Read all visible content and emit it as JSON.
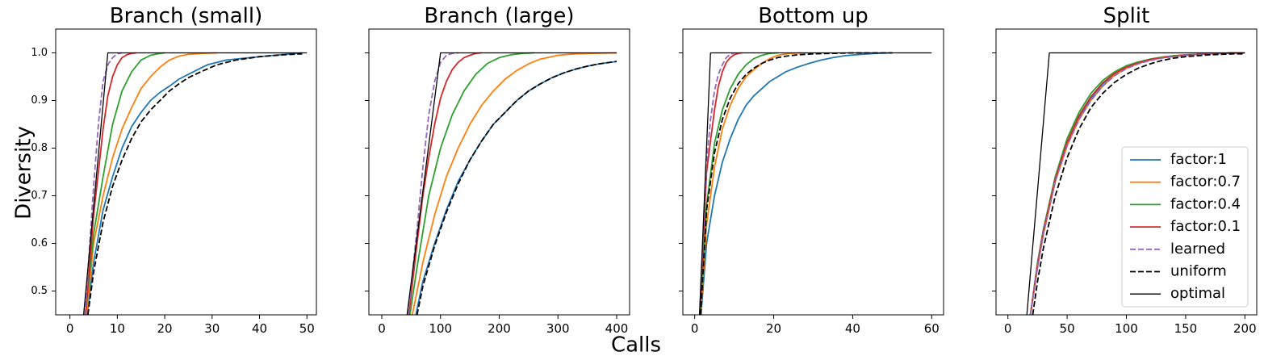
{
  "figure": {
    "ylabel": "Diversity",
    "xlabel": "Calls",
    "colors": {
      "factor:1": "#1f77b4",
      "factor:0.7": "#ff7f0e",
      "factor:0.4": "#2ca02c",
      "factor:0.1": "#d62728",
      "learned": "#9467bd",
      "uniform": "#000000",
      "optimal": "#000000"
    },
    "legend": {
      "placement": "lower-right of last panel",
      "entries": [
        {
          "label": "factor:1",
          "color": "#1f77b4",
          "style": "solid"
        },
        {
          "label": "factor:0.7",
          "color": "#ff7f0e",
          "style": "solid"
        },
        {
          "label": "factor:0.4",
          "color": "#2ca02c",
          "style": "solid"
        },
        {
          "label": "factor:0.1",
          "color": "#d62728",
          "style": "solid"
        },
        {
          "label": "learned",
          "color": "#9467bd",
          "style": "dashed"
        },
        {
          "label": "uniform",
          "color": "#000000",
          "style": "dashed"
        },
        {
          "label": "optimal",
          "color": "#000000",
          "style": "thin"
        }
      ]
    }
  },
  "chart_data": [
    {
      "type": "line",
      "title": "Branch (small)",
      "xlim": [
        -3,
        52
      ],
      "ylim": [
        0.45,
        1.05
      ],
      "xticks": [
        0,
        10,
        20,
        30,
        40,
        50
      ],
      "yticks": [
        0.5,
        0.6,
        0.7,
        0.8,
        0.9,
        1.0
      ],
      "series": [
        {
          "name": "factor:1",
          "x": [
            3.6,
            5,
            7,
            9,
            11,
            13,
            15,
            17,
            19,
            21,
            23,
            26,
            29,
            33,
            38,
            43,
            49
          ],
          "y": [
            0.45,
            0.56,
            0.67,
            0.74,
            0.8,
            0.845,
            0.875,
            0.9,
            0.917,
            0.93,
            0.945,
            0.96,
            0.975,
            0.985,
            0.99,
            0.995,
            1.0
          ]
        },
        {
          "name": "factor:0.7",
          "x": [
            3.5,
            5,
            7,
            9,
            11,
            13,
            15,
            17,
            19,
            21,
            23,
            25,
            28,
            31
          ],
          "y": [
            0.45,
            0.6,
            0.7,
            0.78,
            0.84,
            0.885,
            0.925,
            0.95,
            0.97,
            0.985,
            0.993,
            0.997,
            0.999,
            1.0
          ]
        },
        {
          "name": "factor:0.4",
          "x": [
            3.3,
            5,
            7,
            9,
            11,
            13,
            15,
            17,
            19,
            20
          ],
          "y": [
            0.45,
            0.62,
            0.74,
            0.85,
            0.92,
            0.96,
            0.985,
            0.995,
            0.999,
            1.0
          ]
        },
        {
          "name": "factor:0.1",
          "x": [
            3.3,
            5,
            6,
            7,
            8,
            9,
            10,
            11,
            12,
            13,
            14
          ],
          "y": [
            0.45,
            0.66,
            0.75,
            0.84,
            0.91,
            0.95,
            0.975,
            0.99,
            0.996,
            0.999,
            1.0
          ]
        },
        {
          "name": "learned",
          "x": [
            3.2,
            5,
            6,
            7,
            8,
            9,
            10,
            11
          ],
          "y": [
            0.45,
            0.72,
            0.85,
            0.94,
            0.975,
            0.99,
            0.998,
            1.0
          ]
        },
        {
          "name": "uniform",
          "x": [
            3.8,
            5,
            7,
            9,
            11,
            13,
            15,
            17,
            19,
            21,
            23,
            25,
            28,
            31,
            35,
            40,
            45,
            49
          ],
          "y": [
            0.45,
            0.54,
            0.645,
            0.72,
            0.775,
            0.82,
            0.855,
            0.88,
            0.9,
            0.92,
            0.935,
            0.948,
            0.962,
            0.975,
            0.985,
            0.992,
            0.996,
            0.998
          ]
        },
        {
          "name": "optimal",
          "x": [
            2.9,
            8,
            50
          ],
          "y": [
            0.45,
            1.0,
            1.0
          ]
        }
      ]
    },
    {
      "type": "line",
      "title": "Branch (large)",
      "xlim": [
        -22,
        422
      ],
      "ylim": [
        0.45,
        1.05
      ],
      "xticks": [
        0,
        100,
        200,
        300,
        400
      ],
      "yticks": [
        0.5,
        0.6,
        0.7,
        0.8,
        0.9,
        1.0
      ],
      "series": [
        {
          "name": "factor:1",
          "x": [
            58,
            70,
            90,
            110,
            130,
            150,
            170,
            190,
            210,
            230,
            250,
            270,
            290,
            310,
            330,
            350,
            370,
            400
          ],
          "y": [
            0.45,
            0.52,
            0.6,
            0.67,
            0.73,
            0.775,
            0.815,
            0.85,
            0.875,
            0.9,
            0.92,
            0.935,
            0.948,
            0.958,
            0.966,
            0.972,
            0.977,
            0.982
          ]
        },
        {
          "name": "factor:0.7",
          "x": [
            52,
            70,
            90,
            110,
            130,
            150,
            170,
            190,
            210,
            230,
            250,
            270,
            300,
            330,
            360,
            400
          ],
          "y": [
            0.45,
            0.56,
            0.66,
            0.74,
            0.8,
            0.85,
            0.89,
            0.92,
            0.945,
            0.963,
            0.977,
            0.987,
            0.995,
            0.998,
            0.999,
            1.0
          ]
        },
        {
          "name": "factor:0.4",
          "x": [
            48,
            60,
            80,
            100,
            120,
            140,
            160,
            180,
            200,
            220,
            240,
            260
          ],
          "y": [
            0.45,
            0.55,
            0.7,
            0.8,
            0.87,
            0.92,
            0.955,
            0.978,
            0.99,
            0.996,
            0.999,
            1.0
          ]
        },
        {
          "name": "factor:0.1",
          "x": [
            46,
            60,
            70,
            80,
            90,
            100,
            110,
            120,
            130,
            140,
            150,
            160,
            170
          ],
          "y": [
            0.45,
            0.6,
            0.7,
            0.78,
            0.85,
            0.905,
            0.94,
            0.965,
            0.98,
            0.99,
            0.995,
            0.999,
            1.0
          ]
        },
        {
          "name": "learned",
          "x": [
            45,
            60,
            70,
            80,
            90,
            100,
            110,
            120,
            130
          ],
          "y": [
            0.45,
            0.63,
            0.76,
            0.87,
            0.94,
            0.98,
            0.995,
            0.999,
            1.0
          ]
        },
        {
          "name": "uniform",
          "x": [
            60,
            70,
            90,
            110,
            130,
            150,
            170,
            190,
            210,
            230,
            250,
            270,
            290,
            310,
            330,
            350,
            370,
            400
          ],
          "y": [
            0.45,
            0.51,
            0.595,
            0.665,
            0.725,
            0.775,
            0.815,
            0.85,
            0.875,
            0.9,
            0.92,
            0.935,
            0.948,
            0.958,
            0.966,
            0.972,
            0.977,
            0.982
          ]
        },
        {
          "name": "optimal",
          "x": [
            43,
            100,
            400
          ],
          "y": [
            0.45,
            1.0,
            1.0
          ]
        }
      ]
    },
    {
      "type": "line",
      "title": "Bottom up",
      "xlim": [
        -3,
        63
      ],
      "ylim": [
        0.45,
        1.05
      ],
      "xticks": [
        0,
        20,
        40,
        60
      ],
      "yticks": [
        0.5,
        0.6,
        0.7,
        0.8,
        0.9,
        1.0
      ],
      "series": [
        {
          "name": "factor:1",
          "x": [
            1.6,
            3,
            5,
            7,
            9,
            11,
            13,
            15,
            17,
            19,
            21,
            23,
            26,
            29,
            32,
            35,
            38,
            42,
            46,
            50
          ],
          "y": [
            0.45,
            0.6,
            0.7,
            0.77,
            0.82,
            0.86,
            0.89,
            0.91,
            0.925,
            0.94,
            0.95,
            0.96,
            0.97,
            0.978,
            0.985,
            0.99,
            0.994,
            0.997,
            0.999,
            1.0
          ]
        },
        {
          "name": "factor:0.7",
          "x": [
            1.5,
            3,
            5,
            7,
            9,
            11,
            13,
            15,
            17,
            19,
            21,
            24,
            27
          ],
          "y": [
            0.45,
            0.64,
            0.76,
            0.84,
            0.89,
            0.925,
            0.95,
            0.965,
            0.978,
            0.988,
            0.995,
            0.999,
            1.0
          ]
        },
        {
          "name": "factor:0.4",
          "x": [
            1.4,
            3,
            5,
            7,
            9,
            11,
            13,
            15,
            17,
            19,
            21
          ],
          "y": [
            0.45,
            0.68,
            0.81,
            0.88,
            0.925,
            0.955,
            0.975,
            0.988,
            0.995,
            0.999,
            1.0
          ]
        },
        {
          "name": "factor:0.1",
          "x": [
            1.3,
            3,
            5,
            6,
            7,
            8,
            9,
            10,
            11,
            12
          ],
          "y": [
            0.45,
            0.75,
            0.88,
            0.93,
            0.96,
            0.98,
            0.99,
            0.996,
            0.999,
            1.0
          ]
        },
        {
          "name": "learned",
          "x": [
            1.3,
            3,
            4,
            5,
            6,
            7,
            8,
            9,
            10
          ],
          "y": [
            0.45,
            0.77,
            0.86,
            0.92,
            0.955,
            0.975,
            0.99,
            0.997,
            1.0
          ]
        },
        {
          "name": "uniform",
          "x": [
            1.5,
            3,
            5,
            7,
            9,
            11,
            13,
            15,
            17,
            19,
            21,
            23,
            26,
            30,
            35,
            40,
            45,
            50
          ],
          "y": [
            0.45,
            0.67,
            0.79,
            0.86,
            0.905,
            0.935,
            0.955,
            0.968,
            0.978,
            0.985,
            0.99,
            0.993,
            0.996,
            0.998,
            0.999,
            1.0,
            1.0,
            1.0
          ]
        },
        {
          "name": "optimal",
          "x": [
            1.2,
            4,
            60
          ],
          "y": [
            0.45,
            1.0,
            1.0
          ]
        }
      ]
    },
    {
      "type": "line",
      "title": "Split",
      "xlim": [
        -10,
        210
      ],
      "ylim": [
        0.45,
        1.05
      ],
      "xticks": [
        0,
        50,
        100,
        150,
        200
      ],
      "yticks": [
        0.5,
        0.6,
        0.7,
        0.8,
        0.9,
        1.0
      ],
      "series": [
        {
          "name": "factor:1",
          "x": [
            19,
            25,
            30,
            40,
            50,
            60,
            70,
            80,
            90,
            100,
            110,
            120,
            130,
            140,
            150,
            160,
            170,
            180,
            190,
            200
          ],
          "y": [
            0.45,
            0.55,
            0.62,
            0.73,
            0.81,
            0.865,
            0.905,
            0.935,
            0.955,
            0.97,
            0.978,
            0.985,
            0.99,
            0.993,
            0.995,
            0.997,
            0.998,
            0.999,
            1.0,
            1.0
          ]
        },
        {
          "name": "factor:0.7",
          "x": [
            19,
            25,
            30,
            40,
            50,
            60,
            70,
            80,
            90,
            100,
            110,
            120,
            130,
            140,
            150,
            160,
            170,
            180,
            190,
            200
          ],
          "y": [
            0.45,
            0.55,
            0.62,
            0.73,
            0.805,
            0.86,
            0.9,
            0.93,
            0.953,
            0.968,
            0.978,
            0.985,
            0.99,
            0.993,
            0.995,
            0.997,
            0.998,
            0.999,
            1.0,
            1.0
          ]
        },
        {
          "name": "factor:0.4",
          "x": [
            19,
            25,
            30,
            40,
            50,
            60,
            70,
            80,
            90,
            100,
            110,
            120,
            130,
            140,
            150,
            160,
            170,
            180,
            190,
            200
          ],
          "y": [
            0.45,
            0.56,
            0.63,
            0.74,
            0.82,
            0.875,
            0.915,
            0.942,
            0.96,
            0.973,
            0.981,
            0.987,
            0.991,
            0.994,
            0.996,
            0.997,
            0.998,
            0.999,
            1.0,
            1.0
          ]
        },
        {
          "name": "factor:0.1",
          "x": [
            19,
            25,
            30,
            40,
            50,
            60,
            70,
            80,
            90,
            100,
            110,
            120,
            130,
            140,
            150,
            160,
            170,
            180,
            190,
            200
          ],
          "y": [
            0.45,
            0.555,
            0.625,
            0.735,
            0.812,
            0.868,
            0.908,
            0.937,
            0.957,
            0.97,
            0.979,
            0.986,
            0.99,
            0.993,
            0.995,
            0.997,
            0.998,
            0.999,
            1.0,
            1.0
          ]
        },
        {
          "name": "learned",
          "x": [
            19,
            25,
            30,
            40,
            50,
            60,
            70,
            80,
            90,
            100,
            110,
            120,
            130,
            140,
            150,
            160,
            170,
            180,
            190,
            200
          ],
          "y": [
            0.45,
            0.55,
            0.62,
            0.73,
            0.805,
            0.86,
            0.9,
            0.93,
            0.952,
            0.967,
            0.977,
            0.984,
            0.989,
            0.992,
            0.995,
            0.997,
            0.998,
            0.999,
            0.999,
            1.0
          ]
        },
        {
          "name": "uniform",
          "x": [
            21,
            25,
            30,
            40,
            50,
            60,
            70,
            80,
            90,
            100,
            110,
            120,
            130,
            140,
            150,
            160,
            170,
            180,
            190,
            200
          ],
          "y": [
            0.45,
            0.52,
            0.59,
            0.7,
            0.78,
            0.84,
            0.885,
            0.915,
            0.938,
            0.955,
            0.968,
            0.977,
            0.984,
            0.989,
            0.992,
            0.994,
            0.996,
            0.997,
            0.998,
            0.998
          ]
        },
        {
          "name": "optimal",
          "x": [
            16,
            35,
            200
          ],
          "y": [
            0.45,
            1.0,
            1.0
          ]
        }
      ]
    }
  ]
}
